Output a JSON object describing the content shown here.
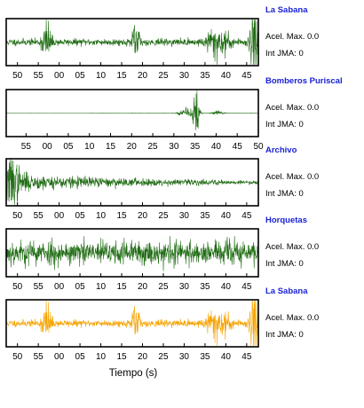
{
  "xlabel": "Tiempo (s)",
  "chart_data": [
    {
      "type": "line",
      "station": "La Sabana",
      "acel_label": "Acel. Max. 0.0",
      "int_label": "Int JMA: 0",
      "color": "#1e6b12",
      "xticks": [
        "50",
        "55",
        "00",
        "05",
        "10",
        "15",
        "20",
        "25",
        "30",
        "35",
        "40",
        "45"
      ],
      "xtick_seconds": [
        50,
        55,
        60,
        65,
        70,
        75,
        80,
        85,
        90,
        95,
        100,
        105
      ],
      "xlim": [
        47.3,
        107.8
      ],
      "signal": {
        "base": 0.18,
        "amp": 0.75,
        "seed": 11,
        "bursts": [
          {
            "t": 57,
            "w": 1.0,
            "a": 1.2
          },
          {
            "t": 78.5,
            "w": 0.8,
            "a": 1.3
          },
          {
            "t": 98,
            "w": 2.5,
            "a": 0.9
          },
          {
            "t": 107,
            "w": 1.2,
            "a": 2.6
          }
        ]
      }
    },
    {
      "type": "line",
      "station": "Bomberos Puriscal",
      "acel_label": "Acel. Max. 0.0",
      "int_label": "Int JMA: 0",
      "color": "#1e6b12",
      "xticks": [
        "55",
        "00",
        "05",
        "10",
        "15",
        "20",
        "25",
        "30",
        "35",
        "40",
        "45",
        "50"
      ],
      "xtick_seconds": [
        55,
        60,
        65,
        70,
        75,
        80,
        85,
        90,
        95,
        100,
        105,
        110
      ],
      "xlim": [
        50.3,
        110.0
      ],
      "signal": {
        "base": 0.003,
        "amp": 0.95,
        "seed": 23,
        "start": 70,
        "bursts": [
          {
            "t": 93,
            "w": 1.6,
            "a": 0.22
          },
          {
            "t": 95.2,
            "w": 0.8,
            "a": 1.05
          },
          {
            "t": 100.5,
            "w": 1.5,
            "a": 0.09
          }
        ]
      }
    },
    {
      "type": "line",
      "station": "Archivo",
      "acel_label": "Acel. Max. 0.0",
      "int_label": "Int JMA: 0",
      "color": "#1e6b12",
      "xticks": [
        "50",
        "55",
        "00",
        "05",
        "10",
        "15",
        "20",
        "25",
        "30",
        "35",
        "40",
        "45"
      ],
      "xtick_seconds": [
        50,
        55,
        60,
        65,
        70,
        75,
        80,
        85,
        90,
        95,
        100,
        105
      ],
      "xlim": [
        47.3,
        107.8
      ],
      "signal": {
        "base": 0.05,
        "amp": 0.75,
        "seed": 37,
        "decay": [
          48,
          30
        ],
        "bursts": [
          {
            "t": 48.5,
            "w": 2.0,
            "a": 1.0
          }
        ]
      }
    },
    {
      "type": "line",
      "station": "Horquetas",
      "acel_label": "Acel. Max. 0.0",
      "int_label": "Int JMA: 0",
      "color": "#1e6b12",
      "xticks": [
        "50",
        "55",
        "00",
        "05",
        "10",
        "15",
        "20",
        "25",
        "30",
        "35",
        "40",
        "45"
      ],
      "xtick_seconds": [
        50,
        55,
        60,
        65,
        70,
        75,
        80,
        85,
        90,
        95,
        100,
        105
      ],
      "xlim": [
        47.3,
        107.8
      ],
      "signal": {
        "base": 0.62,
        "amp": 0.78,
        "seed": 53,
        "bursts": []
      }
    },
    {
      "type": "line",
      "station": "La Sabana",
      "acel_label": "Acel. Max. 0.0",
      "int_label": "Int JMA: 0",
      "color": "#f5a300",
      "xticks": [
        "50",
        "55",
        "00",
        "05",
        "10",
        "15",
        "20",
        "25",
        "30",
        "35",
        "40",
        "45"
      ],
      "xtick_seconds": [
        50,
        55,
        60,
        65,
        70,
        75,
        80,
        85,
        90,
        95,
        100,
        105
      ],
      "xlim": [
        47.3,
        107.8
      ],
      "signal": {
        "base": 0.18,
        "amp": 0.75,
        "seed": 11,
        "bursts": [
          {
            "t": 57,
            "w": 1.0,
            "a": 1.2
          },
          {
            "t": 78.5,
            "w": 0.8,
            "a": 1.3
          },
          {
            "t": 98,
            "w": 2.5,
            "a": 0.9
          },
          {
            "t": 107,
            "w": 1.2,
            "a": 2.6
          }
        ]
      }
    }
  ]
}
